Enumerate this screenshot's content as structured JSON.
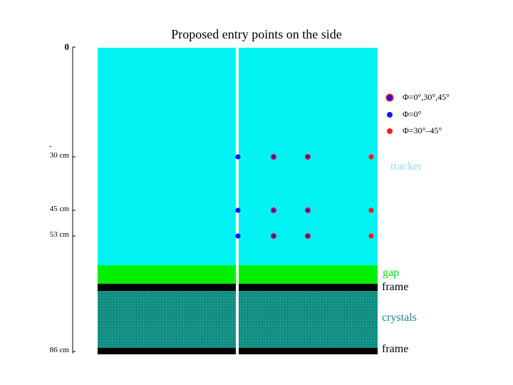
{
  "title": "Proposed entry points on the side",
  "axis": {
    "ticks": [
      {
        "label": "0",
        "value": 0
      },
      {
        "label": "30 cm",
        "value": 30,
        "prefix": "-"
      },
      {
        "label": "45 cm",
        "value": 45
      },
      {
        "label": "53 cm",
        "value": 53
      },
      {
        "label": "86 cm",
        "value": 86
      }
    ]
  },
  "regions": [
    {
      "name": "tracker",
      "label": "tracker",
      "color": "#00f2f2",
      "label_color": "#8fdcff"
    },
    {
      "name": "gap",
      "label": "gap",
      "color": "#00f000",
      "label_color": "#00e400"
    },
    {
      "name": "frame-top",
      "label": "frame",
      "color": "#000000",
      "label_color": "#000000"
    },
    {
      "name": "crystals",
      "label": "crystals",
      "color": "#138f84",
      "label_color": "#108a80"
    },
    {
      "name": "frame-bottom",
      "label": "frame",
      "color": "#000000",
      "label_color": "#000000"
    }
  ],
  "legend": [
    {
      "label": "Φ=0°,30°,45°",
      "fill": "#1616ff",
      "ring": "#ff1a1a",
      "key": "all"
    },
    {
      "label": "Φ=0°",
      "fill": "#1616ff",
      "key": "phi0"
    },
    {
      "label": "Φ=30°–45°",
      "fill": "#ff1a1a",
      "key": "phi3045"
    }
  ],
  "chart_data": {
    "type": "scatter",
    "title": "Proposed entry points on the side",
    "series": [
      {
        "name": "Φ=0°,30°,45°",
        "points": [
          {
            "row": 30,
            "col": 2
          },
          {
            "row": 30,
            "col": 3
          },
          {
            "row": 45,
            "col": 2
          },
          {
            "row": 45,
            "col": 3
          },
          {
            "row": 53,
            "col": 2
          },
          {
            "row": 53,
            "col": 3
          }
        ]
      },
      {
        "name": "Φ=0°",
        "points": [
          {
            "row": 30,
            "col": 1
          },
          {
            "row": 45,
            "col": 1
          },
          {
            "row": 53,
            "col": 1
          }
        ]
      },
      {
        "name": "Φ=30°–45°",
        "points": [
          {
            "row": 30,
            "col": 4
          },
          {
            "row": 45,
            "col": 4
          },
          {
            "row": 53,
            "col": 4
          }
        ]
      }
    ],
    "ylim": [
      0,
      86
    ],
    "yunit": "cm"
  }
}
